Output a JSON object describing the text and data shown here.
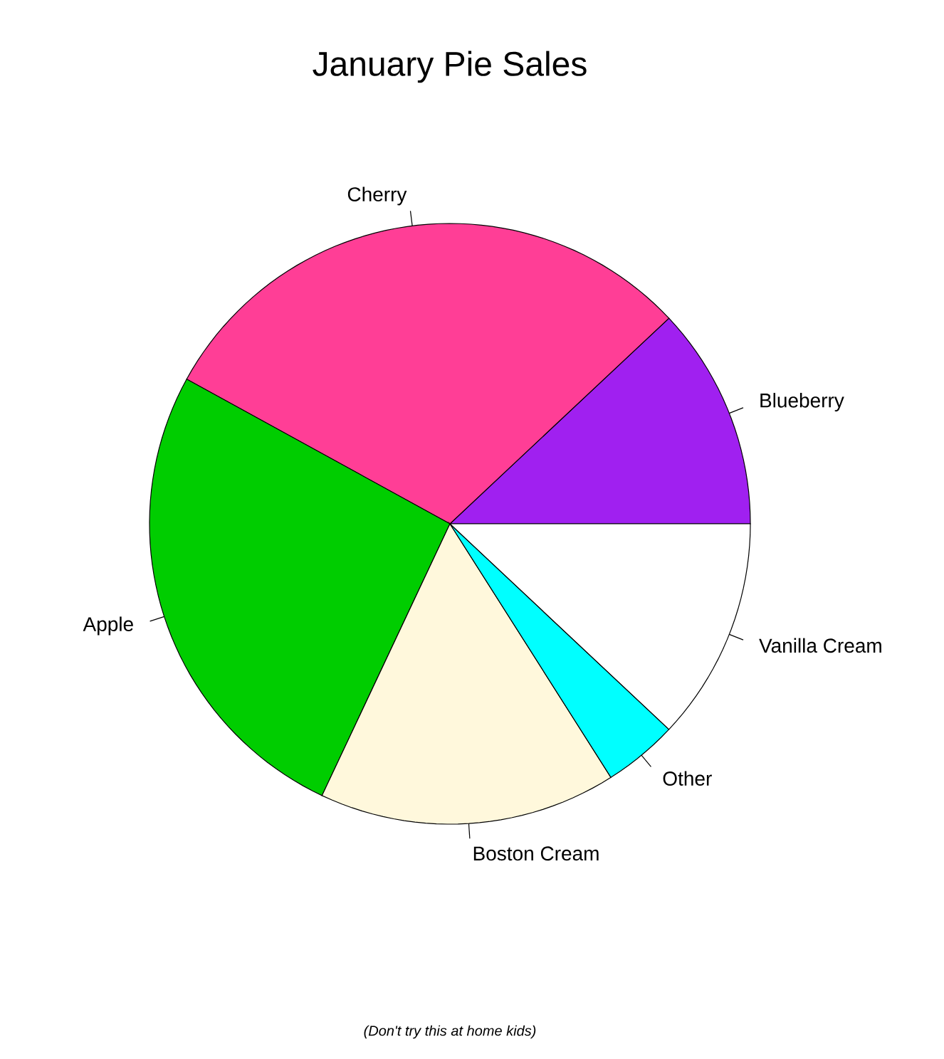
{
  "chart_data": {
    "type": "pie",
    "title": "January Pie Sales",
    "categories": [
      "Blueberry",
      "Cherry",
      "Apple",
      "Boston Cream",
      "Other",
      "Vanilla Cream"
    ],
    "values": [
      12,
      30,
      26,
      16,
      4,
      12
    ],
    "colors": [
      "#a020f0",
      "#ff3e96",
      "#00cd00",
      "#fff8dc",
      "#00ffff",
      "#ffffff"
    ],
    "annotations": [
      "(Don't try this at home kids)"
    ]
  }
}
